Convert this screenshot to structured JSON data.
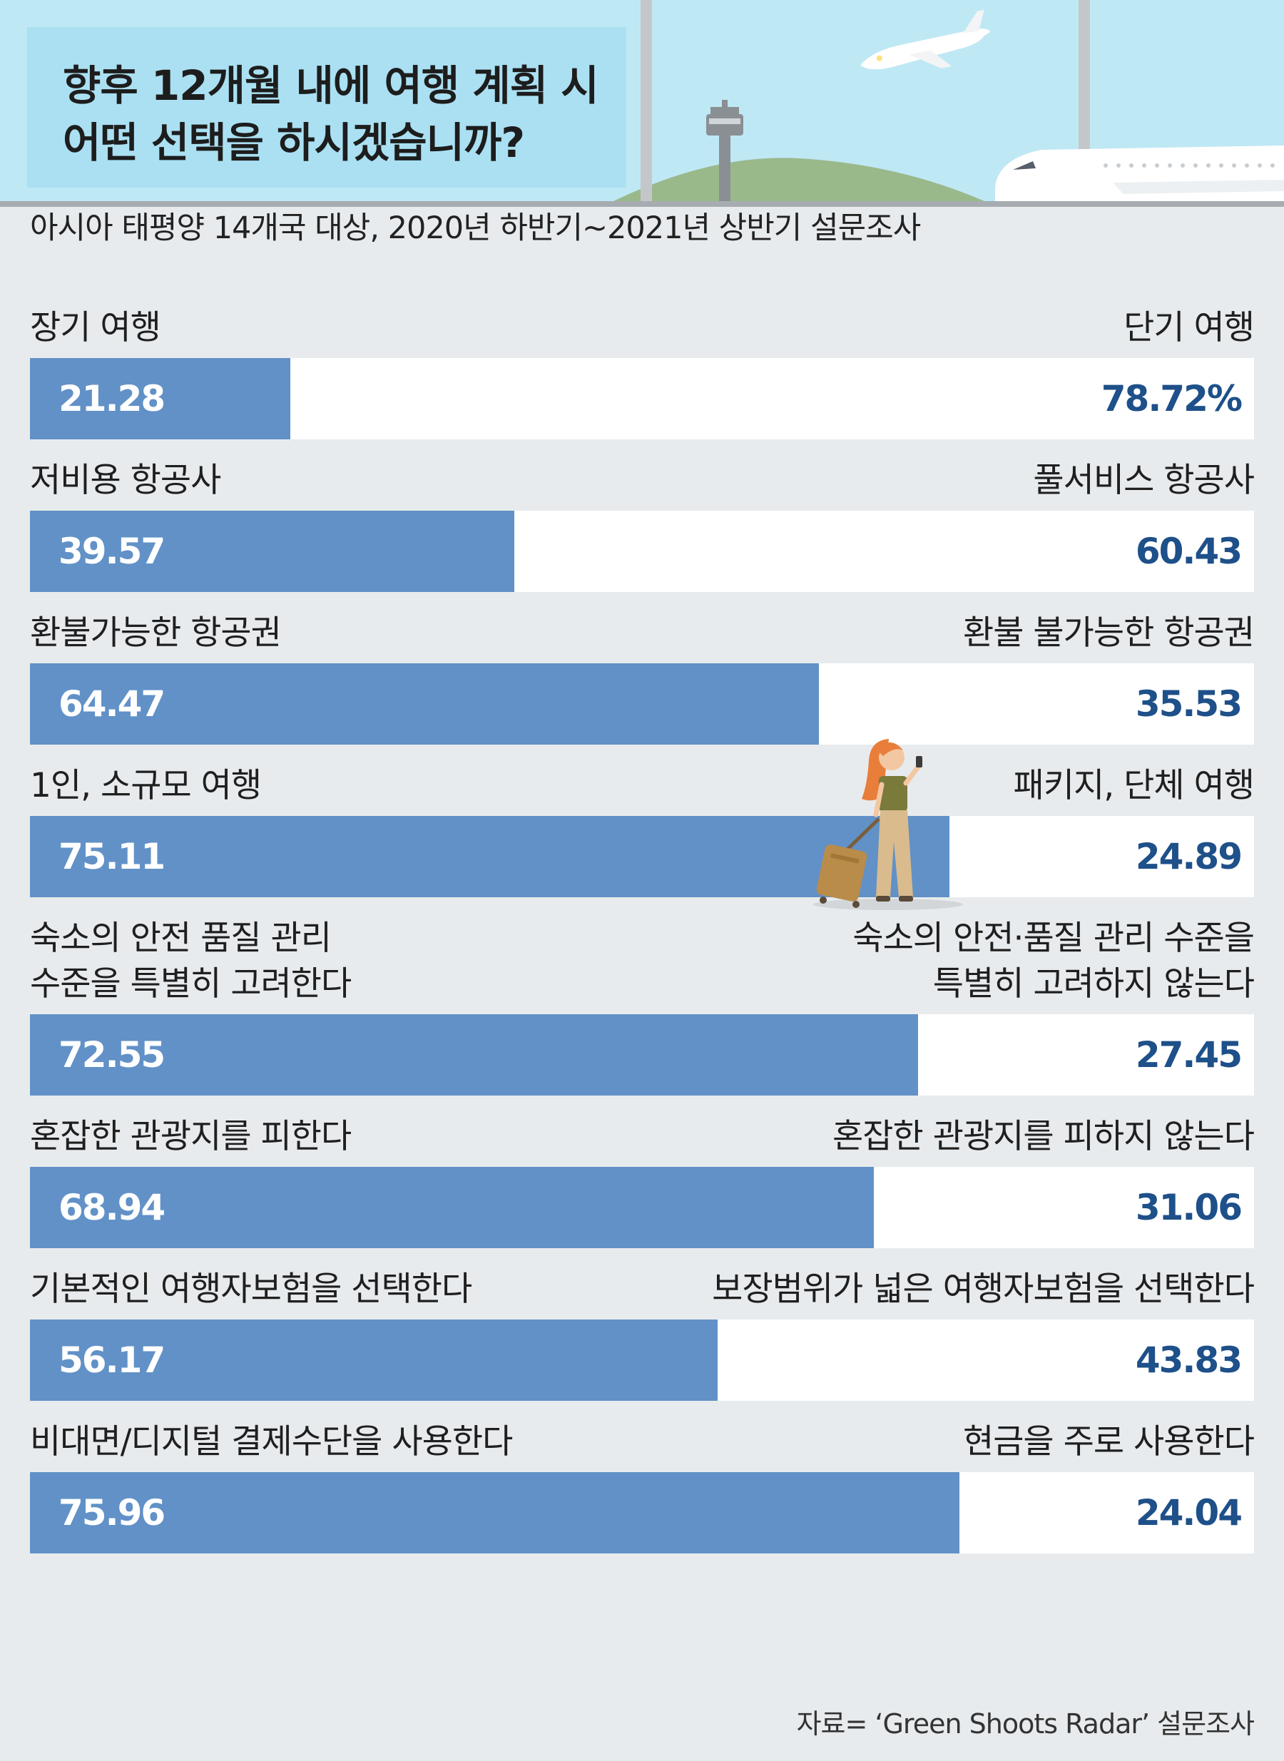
{
  "header": {
    "title_line1": "향후 12개월 내에 여행 계획 시",
    "title_line2": "어떤 선택을 하시겠습니까?"
  },
  "subtitle": "아시아 태평양 14개국 대상, 2020년 하반기~2021년 상반기 설문조사",
  "source": "자료= ‘Green Shoots Radar’ 설문조사",
  "colors": {
    "bar": "#6191c7",
    "right_value": "#1e5089",
    "header_sky": "#bfe8f5",
    "title_box": "#aae0f2",
    "background": "#e8ebed"
  },
  "chart_data": {
    "type": "bar",
    "orientation": "horizontal-stacked-100",
    "xlim": [
      0,
      100
    ],
    "rows": [
      {
        "left_label": "장기 여행",
        "right_label": "단기 여행",
        "left_value": 21.28,
        "right_value": 78.72,
        "left_text": "21.28",
        "right_text": "78.72%"
      },
      {
        "left_label": "저비용 항공사",
        "right_label": "풀서비스 항공사",
        "left_value": 39.57,
        "right_value": 60.43,
        "left_text": "39.57",
        "right_text": "60.43"
      },
      {
        "left_label": "환불가능한 항공권",
        "right_label": "환불 불가능한 항공권",
        "left_value": 64.47,
        "right_value": 35.53,
        "left_text": "64.47",
        "right_text": "35.53"
      },
      {
        "left_label": "1인, 소규모 여행",
        "right_label": "패키지, 단체 여행",
        "left_value": 75.11,
        "right_value": 24.89,
        "left_text": "75.11",
        "right_text": "24.89"
      },
      {
        "left_label": "숙소의 안전 품질 관리\n수준을 특별히 고려한다",
        "right_label": "숙소의 안전·품질 관리 수준을\n특별히 고려하지 않는다",
        "left_value": 72.55,
        "right_value": 27.45,
        "left_text": "72.55",
        "right_text": "27.45"
      },
      {
        "left_label": "혼잡한 관광지를 피한다",
        "right_label": "혼잡한 관광지를 피하지 않는다",
        "left_value": 68.94,
        "right_value": 31.06,
        "left_text": "68.94",
        "right_text": "31.06"
      },
      {
        "left_label": "기본적인 여행자보험을 선택한다",
        "right_label": "보장범위가 넓은 여행자보험을 선택한다",
        "left_value": 56.17,
        "right_value": 43.83,
        "left_text": "56.17",
        "right_text": "43.83"
      },
      {
        "left_label": "비대면/디지털 결제수단을 사용한다",
        "right_label": "현금을 주로 사용한다",
        "left_value": 75.96,
        "right_value": 24.04,
        "left_text": "75.96",
        "right_text": "24.04"
      }
    ]
  }
}
